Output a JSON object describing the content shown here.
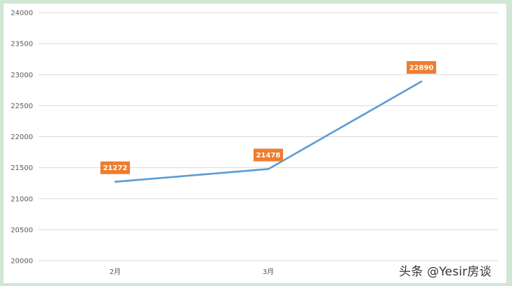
{
  "chart_data": {
    "type": "line",
    "title": "",
    "xlabel": "",
    "ylabel": "",
    "categories": [
      "2月",
      "3月",
      ""
    ],
    "series": [
      {
        "values": [
          21272,
          21478,
          22890
        ]
      }
    ],
    "data_labels": [
      "21272",
      "21478",
      "22890"
    ],
    "y_ticks": [
      "20000",
      "20500",
      "21000",
      "21500",
      "22000",
      "22500",
      "23000",
      "23500",
      "24000"
    ],
    "ylim": [
      20000,
      24000
    ],
    "grid": true,
    "legend": "none",
    "colors": {
      "line": "#5b9bd5",
      "label_bg": "#ed7d31",
      "gridline": "#d9d9d9",
      "axis": "#d9d9d9"
    }
  },
  "watermark": "头条 @Yesir房谈"
}
